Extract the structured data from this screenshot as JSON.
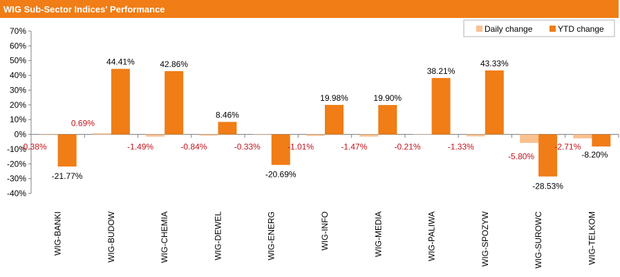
{
  "title": "WIG Sub-Sector Indices' Performance",
  "chart_data": {
    "type": "bar",
    "title": "WIG Sub-Sector Indices' Performance",
    "categories": [
      "WIG-BANKI",
      "WIG-BUDOW",
      "WIG-CHEMIA",
      "WIG-DEWEL",
      "WIG-ENERG",
      "WIG-INFO",
      "WIG-MEDIA",
      "WIG-PALIWA",
      "WIG-SPOZYW",
      "WIG-SUROWC",
      "WIG-TELKOM"
    ],
    "series": [
      {
        "name": "Daily change",
        "color": "#fac090",
        "values": [
          -0.38,
          0.69,
          -1.49,
          -0.84,
          -0.33,
          -1.01,
          -1.47,
          -0.21,
          -1.33,
          -5.8,
          -2.71
        ],
        "labels": [
          "-0.38%",
          "0.69%",
          "-1.49%",
          "-0.84%",
          "-0.33%",
          "-1.01%",
          "-1.47%",
          "-0.21%",
          "-1.33%",
          "-5.80%",
          "-2.71%"
        ]
      },
      {
        "name": "YTD change",
        "color": "#f07d16",
        "values": [
          -21.77,
          44.41,
          42.86,
          8.46,
          -20.69,
          19.98,
          19.9,
          38.21,
          43.33,
          -28.53,
          -8.2
        ],
        "labels": [
          "-21.77%",
          "44.41%",
          "42.86%",
          "8.46%",
          "-20.69%",
          "19.98%",
          "19.90%",
          "38.21%",
          "43.33%",
          "-28.53%",
          "-8.20%"
        ]
      }
    ],
    "ylim": [
      -40,
      70
    ],
    "yticks": [
      70,
      60,
      50,
      40,
      30,
      20,
      10,
      0,
      -10,
      -20,
      -30,
      -40
    ],
    "ytick_labels": [
      "70%",
      "60%",
      "50%",
      "40%",
      "30%",
      "20%",
      "10%",
      "0%",
      "-10%",
      "-20%",
      "-30%",
      "-40%"
    ],
    "legend_position": "top-right",
    "grid": false
  }
}
